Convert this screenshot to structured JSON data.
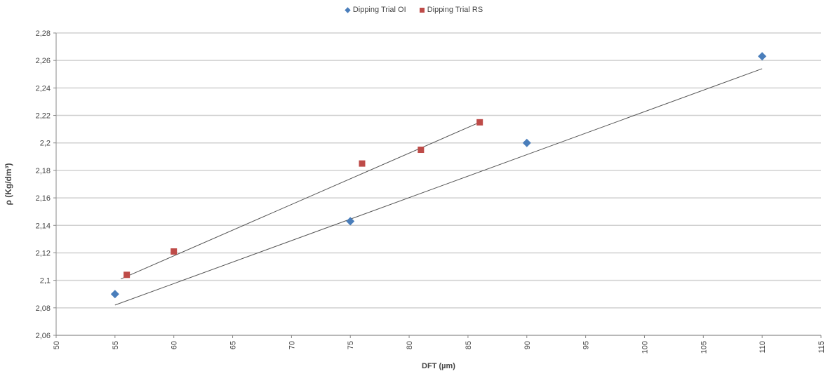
{
  "chart_data": {
    "type": "scatter",
    "title": "",
    "xlabel": "DFT (µm)",
    "ylabel": "ρ (Kg/dm³)",
    "xlim": [
      50,
      115
    ],
    "ylim": [
      2.06,
      2.28
    ],
    "x_ticks": [
      50,
      55,
      60,
      65,
      70,
      75,
      80,
      85,
      90,
      95,
      100,
      105,
      110,
      115
    ],
    "x_tick_labels": [
      "50",
      "55",
      "60",
      "65",
      "70",
      "75",
      "80",
      "85",
      "90",
      "95",
      "100",
      "105",
      "110",
      "115"
    ],
    "y_ticks": [
      2.06,
      2.08,
      2.1,
      2.12,
      2.14,
      2.16,
      2.18,
      2.2,
      2.22,
      2.24,
      2.26,
      2.28
    ],
    "y_tick_labels": [
      "2,06",
      "2,08",
      "2,1",
      "2,12",
      "2,14",
      "2,16",
      "2,18",
      "2,2",
      "2,22",
      "2,24",
      "2,26",
      "2,28"
    ],
    "grid": "horizontal",
    "legend_position": "top",
    "series": [
      {
        "name": "Dipping Trial OI",
        "marker": "diamond",
        "color": "#4a7ebb",
        "points": [
          [
            55,
            2.09
          ],
          [
            75,
            2.143
          ],
          [
            90,
            2.2
          ],
          [
            110,
            2.263
          ]
        ],
        "trendline": [
          [
            55,
            2.082
          ],
          [
            110,
            2.254
          ]
        ]
      },
      {
        "name": "Dipping Trial RS",
        "marker": "square",
        "color": "#be4b48",
        "points": [
          [
            56,
            2.104
          ],
          [
            60,
            2.121
          ],
          [
            76,
            2.185
          ],
          [
            81,
            2.195
          ],
          [
            86,
            2.215
          ]
        ],
        "trendline": [
          [
            55.5,
            2.101
          ],
          [
            86,
            2.215
          ]
        ]
      }
    ]
  }
}
